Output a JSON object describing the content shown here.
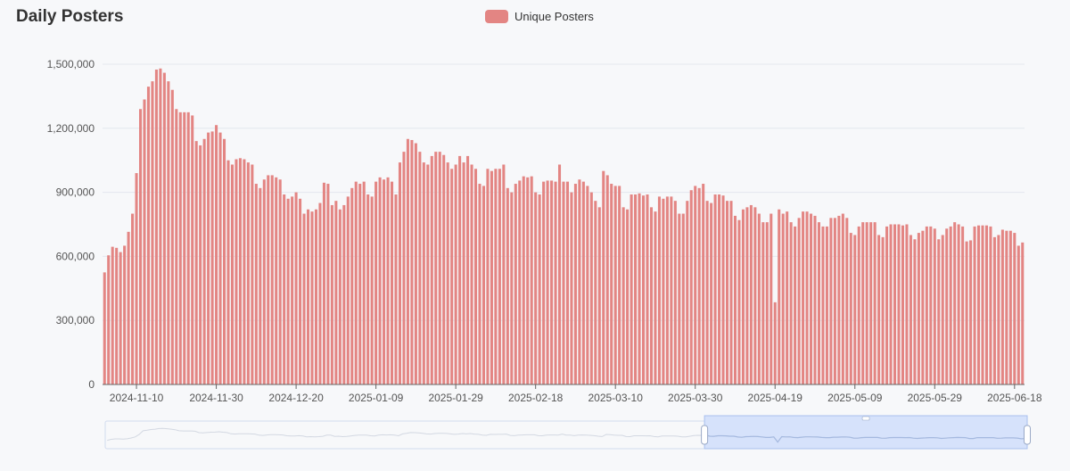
{
  "title": "Daily Posters",
  "colors": {
    "bar": "#e38583",
    "grid": "#e4e7ee",
    "axis": "#666666",
    "zoom_fill": "#d6e2fb",
    "zoom_border": "#a9c0ee",
    "zoom_line": "#a5b9e0",
    "zoom_line_unselected": "#d3d8e2"
  },
  "chart_data": {
    "type": "bar",
    "title": "Daily Posters",
    "series": [
      {
        "name": "Unique Posters",
        "start_date": "2024-11-02",
        "values": [
          525000,
          605000,
          645000,
          640000,
          620000,
          650000,
          715000,
          800000,
          990000,
          1290000,
          1335000,
          1395000,
          1420000,
          1475000,
          1480000,
          1460000,
          1420000,
          1380000,
          1290000,
          1275000,
          1275000,
          1275000,
          1260000,
          1140000,
          1120000,
          1150000,
          1180000,
          1185000,
          1215000,
          1180000,
          1150000,
          1050000,
          1030000,
          1055000,
          1060000,
          1055000,
          1040000,
          1030000,
          940000,
          920000,
          960000,
          980000,
          980000,
          970000,
          960000,
          890000,
          870000,
          880000,
          900000,
          870000,
          800000,
          820000,
          810000,
          820000,
          850000,
          945000,
          940000,
          840000,
          860000,
          820000,
          840000,
          880000,
          920000,
          950000,
          940000,
          950000,
          890000,
          880000,
          950000,
          970000,
          960000,
          970000,
          950000,
          890000,
          1040000,
          1090000,
          1150000,
          1145000,
          1130000,
          1090000,
          1040000,
          1030000,
          1070000,
          1090000,
          1090000,
          1075000,
          1040000,
          1010000,
          1030000,
          1070000,
          1040000,
          1070000,
          1030000,
          1010000,
          940000,
          930000,
          1010000,
          1000000,
          1010000,
          1010000,
          1030000,
          920000,
          900000,
          940000,
          955000,
          975000,
          970000,
          975000,
          900000,
          890000,
          950000,
          955000,
          955000,
          950000,
          1030000,
          950000,
          950000,
          900000,
          940000,
          960000,
          950000,
          930000,
          900000,
          860000,
          830000,
          1000000,
          980000,
          940000,
          930000,
          930000,
          830000,
          820000,
          890000,
          890000,
          895000,
          885000,
          890000,
          830000,
          810000,
          880000,
          870000,
          880000,
          880000,
          860000,
          800000,
          800000,
          860000,
          910000,
          930000,
          920000,
          940000,
          860000,
          850000,
          890000,
          890000,
          885000,
          860000,
          860000,
          790000,
          770000,
          820000,
          830000,
          840000,
          830000,
          800000,
          760000,
          760000,
          800000,
          385000,
          820000,
          800000,
          810000,
          760000,
          740000,
          780000,
          810000,
          810000,
          800000,
          790000,
          760000,
          740000,
          740000,
          780000,
          780000,
          790000,
          800000,
          780000,
          710000,
          700000,
          740000,
          760000,
          760000,
          760000,
          760000,
          700000,
          690000,
          740000,
          750000,
          750000,
          750000,
          745000,
          750000,
          700000,
          680000,
          710000,
          720000,
          740000,
          740000,
          730000,
          680000,
          700000,
          730000,
          740000,
          760000,
          750000,
          740000,
          670000,
          675000,
          740000,
          745000,
          745000,
          745000,
          740000,
          690000,
          700000,
          725000,
          720000,
          720000,
          710000,
          650000,
          665000
        ]
      }
    ],
    "x_labels": [
      "2024-11-10",
      "2024-11-30",
      "2024-12-20",
      "2025-01-09",
      "2025-01-29",
      "2025-02-18",
      "2025-03-10",
      "2025-03-30",
      "2025-04-19",
      "2025-05-09",
      "2025-05-29",
      "2025-06-18"
    ],
    "y_ticks": [
      "0",
      "300,000",
      "600,000",
      "900,000",
      "1,200,000",
      "1,500,000"
    ],
    "y_tick_values": [
      0,
      300000,
      600000,
      900000,
      1200000,
      1500000
    ],
    "ylim": [
      0,
      1500000
    ],
    "grid": true,
    "legend_position": "top-center",
    "zoom_slider": {
      "start_fraction": 0.65,
      "end_fraction": 1.0
    }
  }
}
